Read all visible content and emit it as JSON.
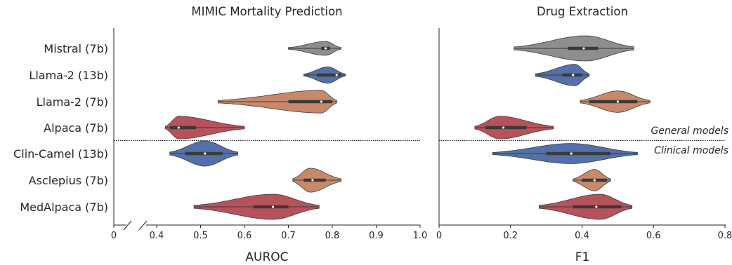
{
  "chart_data": [
    {
      "type": "violin",
      "title": "MIMIC Mortality Prediction",
      "xlabel": "AUROC",
      "xlim": [
        0,
        1.0
      ],
      "axis_break": [
        0,
        0.4
      ],
      "xticks": [
        "0",
        "0.4",
        "0.5",
        "0.6",
        "0.7",
        "0.8",
        "0.9",
        "1.0"
      ],
      "xtick_values": [
        0,
        0.4,
        0.5,
        0.6,
        0.7,
        0.8,
        0.9,
        1.0
      ],
      "categories": [
        "Mistral (7b)",
        "Llama-2 (13b)",
        "Llama-2 (7b)",
        "Alpaca (7b)",
        "Clin-Camel (13b)",
        "Asclepius (7b)",
        "MedAlpaca (7b)"
      ],
      "series": [
        {
          "min": 0.7,
          "max": 0.82,
          "q1": 0.775,
          "median": 0.785,
          "q3": 0.795,
          "mode": 0.785,
          "width": 0.55
        },
        {
          "min": 0.735,
          "max": 0.83,
          "q1": 0.765,
          "median": 0.81,
          "q3": 0.82,
          "mode": 0.79,
          "width": 0.65
        },
        {
          "min": 0.54,
          "max": 0.81,
          "q1": 0.7,
          "median": 0.775,
          "q3": 0.8,
          "mode": 0.775,
          "width": 0.9
        },
        {
          "min": 0.42,
          "max": 0.6,
          "q1": 0.43,
          "median": 0.45,
          "q3": 0.49,
          "mode": 0.45,
          "width": 0.9
        },
        {
          "min": 0.43,
          "max": 0.585,
          "q1": 0.465,
          "median": 0.51,
          "q3": 0.55,
          "mode": 0.51,
          "width": 1.0
        },
        {
          "min": 0.71,
          "max": 0.82,
          "q1": 0.735,
          "median": 0.755,
          "q3": 0.785,
          "mode": 0.75,
          "width": 0.95
        },
        {
          "min": 0.485,
          "max": 0.77,
          "q1": 0.62,
          "median": 0.665,
          "q3": 0.7,
          "mode": 0.665,
          "width": 1.0
        }
      ],
      "colors": [
        "#8e8e8e",
        "#5470a8",
        "#c8896a",
        "#b7525b",
        "#5470a8",
        "#c8896a",
        "#b7525b"
      ]
    },
    {
      "type": "violin",
      "title": "Drug Extraction",
      "xlabel": "F1",
      "xlim": [
        0,
        0.8
      ],
      "xticks": [
        "0",
        "0.2",
        "0.4",
        "0.6",
        "0.8"
      ],
      "xtick_values": [
        0,
        0.2,
        0.4,
        0.6,
        0.8
      ],
      "categories": [
        "Mistral (7b)",
        "Llama-2 (13b)",
        "Llama-2 (7b)",
        "Alpaca (7b)",
        "Clin-Camel (13b)",
        "Asclepius (7b)",
        "MedAlpaca (7b)"
      ],
      "series": [
        {
          "min": 0.21,
          "max": 0.545,
          "q1": 0.36,
          "median": 0.405,
          "q3": 0.445,
          "mode": 0.41,
          "width": 1.0
        },
        {
          "min": 0.27,
          "max": 0.42,
          "q1": 0.345,
          "median": 0.375,
          "q3": 0.4,
          "mode": 0.38,
          "width": 0.85
        },
        {
          "min": 0.395,
          "max": 0.59,
          "q1": 0.42,
          "median": 0.5,
          "q3": 0.555,
          "mode": 0.5,
          "width": 0.85
        },
        {
          "min": 0.1,
          "max": 0.32,
          "q1": 0.13,
          "median": 0.18,
          "q3": 0.245,
          "mode": 0.17,
          "width": 0.9
        },
        {
          "min": 0.15,
          "max": 0.555,
          "q1": 0.3,
          "median": 0.37,
          "q3": 0.48,
          "mode": 0.37,
          "width": 0.8
        },
        {
          "min": 0.375,
          "max": 0.48,
          "q1": 0.4,
          "median": 0.435,
          "q3": 0.47,
          "mode": 0.435,
          "width": 0.85
        },
        {
          "min": 0.28,
          "max": 0.54,
          "q1": 0.375,
          "median": 0.44,
          "q3": 0.51,
          "mode": 0.45,
          "width": 1.0
        }
      ],
      "colors": [
        "#8e8e8e",
        "#5470a8",
        "#c8896a",
        "#b7525b",
        "#5470a8",
        "#c8896a",
        "#b7525b"
      ]
    }
  ],
  "annotations": {
    "general": "General models",
    "clinical": "Clinical models"
  }
}
